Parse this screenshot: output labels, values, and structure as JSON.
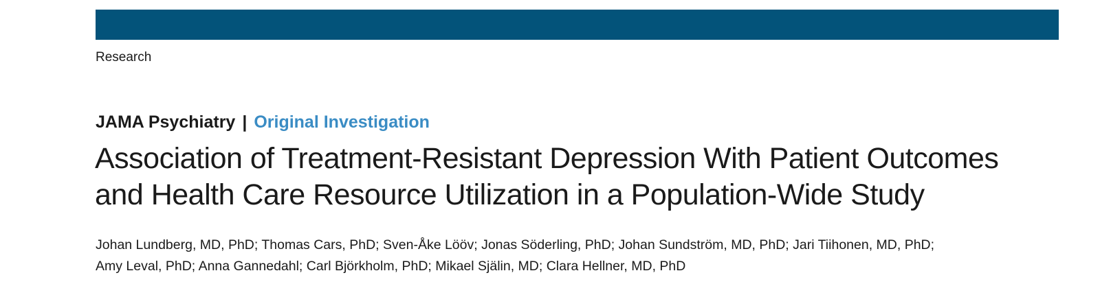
{
  "header": {
    "bar_color": "#03537a",
    "section_label": "Research"
  },
  "journal": {
    "name": "JAMA Psychiatry",
    "separator": "|",
    "article_type": "Original Investigation",
    "article_type_color": "#3a8cc4"
  },
  "article": {
    "title_line1": "Association of Treatment-Resistant Depression With Patient Outcomes",
    "title_line2": "and Health Care Resource Utilization in a Population-Wide Study",
    "authors_line1": "Johan Lundberg, MD, PhD; Thomas Cars, PhD; Sven-Åke Lööv; Jonas Söderling, PhD; Johan Sundström, MD, PhD; Jari Tiihonen, MD, PhD;",
    "authors_line2": "Amy Leval, PhD; Anna Gannedahl; Carl Björkholm, PhD; Mikael Själin, MD; Clara Hellner, MD, PhD"
  }
}
